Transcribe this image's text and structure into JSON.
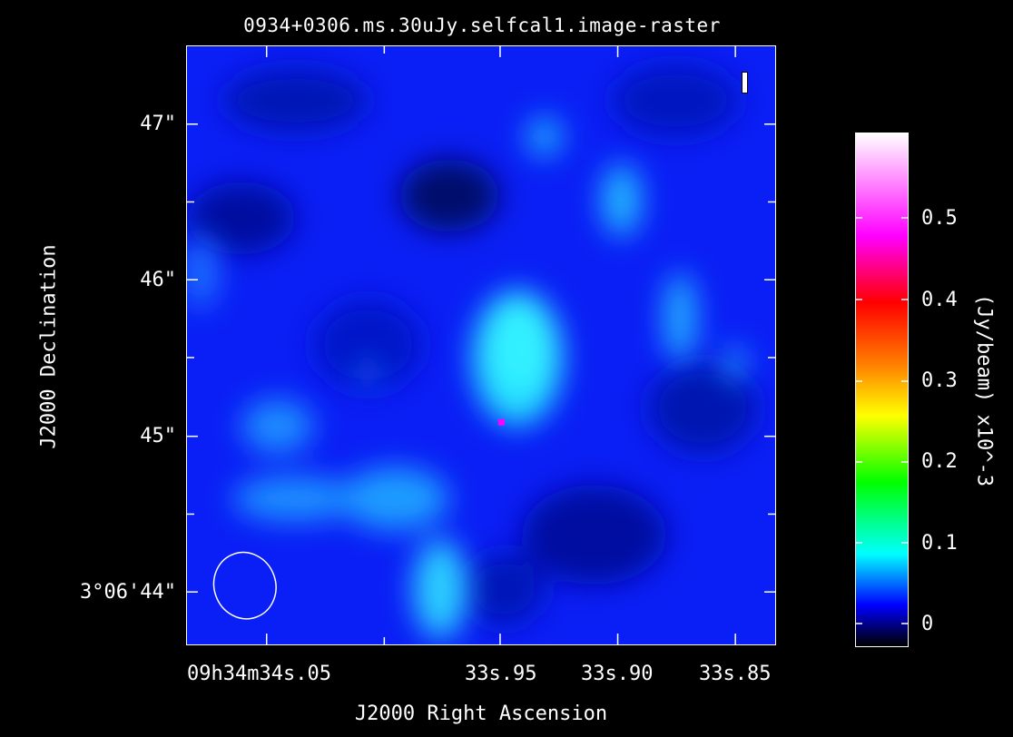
{
  "title": "0934+0306.ms.30uJy.selfcal1.image-raster",
  "y_axis": {
    "title": "J2000 Declination",
    "ticks": [
      "47\"",
      "46\"",
      "45\"",
      "3°06'44\""
    ]
  },
  "x_axis": {
    "title": "J2000 Right Ascension",
    "ticks": [
      "09h34m34s.05",
      "33s.95",
      "33s.90",
      "33s.85"
    ]
  },
  "colorbar": {
    "title": "(Jy/beam) x10^-3",
    "ticks": [
      "0.5",
      "0.4",
      "0.3",
      "0.2",
      "0.1",
      "0"
    ],
    "colormap": "rainbow",
    "colors": [
      "#000000",
      "#0000ff",
      "#00ffff",
      "#00ff00",
      "#ffff00",
      "#ff7f00",
      "#ff0000",
      "#ff00ff",
      "#ffffff"
    ]
  },
  "stokes_marker": "I",
  "beam": {
    "shape": "ellipse",
    "color": "#ffffff"
  },
  "peak_marker": {
    "color": "#ff00ff"
  }
}
